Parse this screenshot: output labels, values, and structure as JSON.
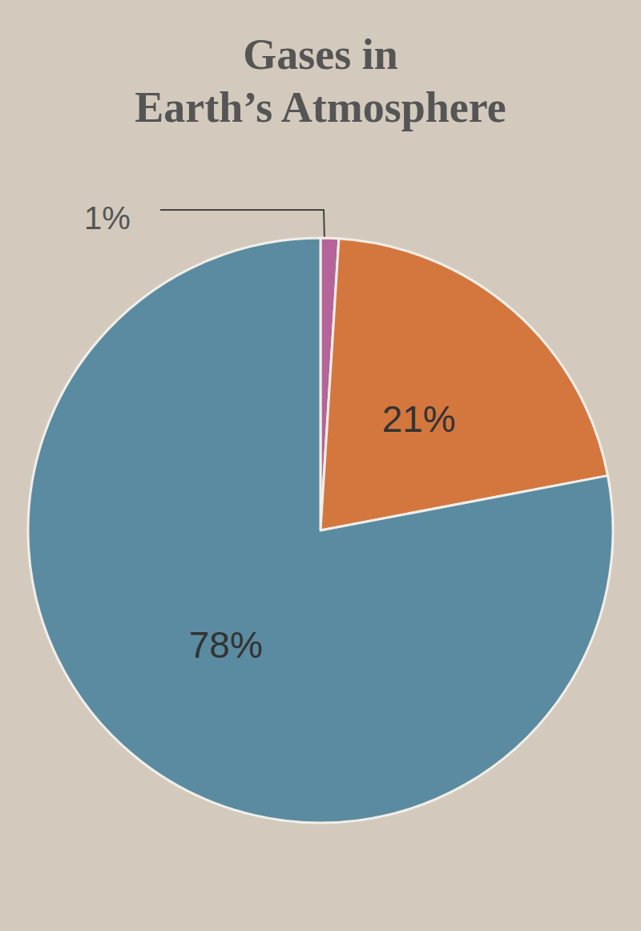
{
  "chart_data": {
    "type": "pie",
    "title": "Gases in\nEarth’s Atmosphere",
    "values": [
      1,
      21,
      78
    ],
    "value_labels": [
      "1%",
      "21%",
      "78%"
    ],
    "colors": [
      "#b5649a",
      "#d4773e",
      "#5b8ba1"
    ],
    "data_labels": true
  }
}
